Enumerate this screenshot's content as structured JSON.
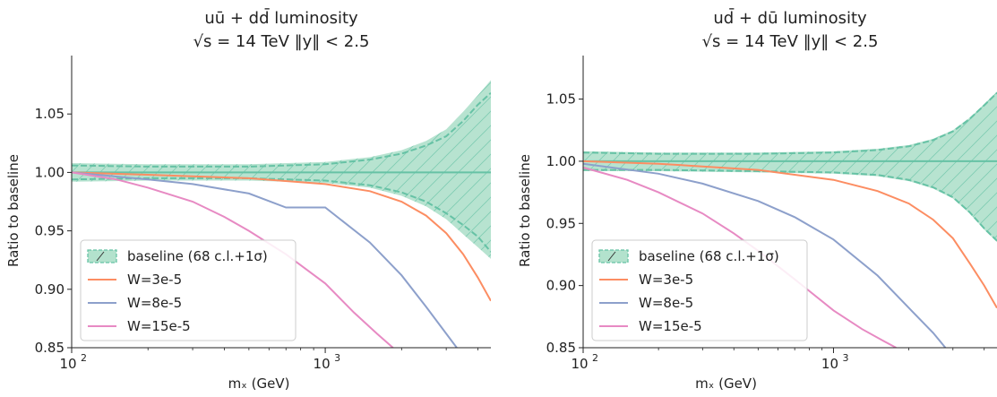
{
  "colors": {
    "baseline": "#66c2a5",
    "baseline_fill": "#b3e2cd",
    "w3": "#fc8d62",
    "w8": "#8da0cb",
    "w15": "#e78ac3"
  },
  "chart_data": [
    {
      "type": "line",
      "title": "uū + dd̄ luminosity",
      "subtitle": "√s = 14 TeV    ‖y‖ < 2.5",
      "xlabel": "m_X (GeV)",
      "ylabel": "Ratio to baseline",
      "xscale": "log",
      "xlim": [
        100,
        4500
      ],
      "ylim": [
        0.85,
        1.1
      ],
      "yticks": [
        0.85,
        0.9,
        0.95,
        1.0,
        1.05
      ],
      "ytick_labels": [
        "0.85",
        "0.90",
        "0.95",
        "1.00",
        "1.05"
      ],
      "xticks": [
        100,
        1000
      ],
      "xtick_labels": [
        "10",
        "10"
      ],
      "xtick_exponents": [
        "2",
        "3"
      ],
      "legend": {
        "position": "lower-left",
        "entries": [
          "baseline (68 c.l.+1σ)",
          "W=3e-5",
          "W=8e-5",
          "W=15e-5"
        ]
      },
      "band": {
        "name": "baseline (68 c.l.+1σ)",
        "x": [
          100,
          200,
          500,
          1000,
          1500,
          2000,
          2500,
          3000,
          3500,
          4000,
          4500
        ],
        "upper": [
          1.008,
          1.007,
          1.007,
          1.009,
          1.013,
          1.019,
          1.027,
          1.037,
          1.052,
          1.066,
          1.079
        ],
        "lower": [
          0.992,
          0.993,
          0.993,
          0.991,
          0.987,
          0.98,
          0.971,
          0.96,
          0.947,
          0.936,
          0.926
        ],
        "dashed_upper": [
          1.006,
          1.005,
          1.005,
          1.007,
          1.011,
          1.016,
          1.023,
          1.031,
          1.044,
          1.058,
          1.068
        ],
        "dashed_lower": [
          0.994,
          0.995,
          0.995,
          0.993,
          0.989,
          0.983,
          0.975,
          0.965,
          0.955,
          0.945,
          0.932
        ]
      },
      "series": [
        {
          "name": "W=3e-5",
          "color_key": "w3",
          "x": [
            100,
            200,
            500,
            1000,
            1500,
            2000,
            2500,
            3000,
            3500,
            4000,
            4500
          ],
          "values": [
            1.0,
            0.998,
            0.995,
            0.99,
            0.984,
            0.975,
            0.963,
            0.948,
            0.93,
            0.91,
            0.89
          ]
        },
        {
          "name": "W=8e-5",
          "color_key": "w8",
          "x": [
            100,
            200,
            300,
            500,
            700,
            1000,
            1500,
            2000,
            2500,
            3000,
            3300
          ],
          "values": [
            1.0,
            0.994,
            0.99,
            0.982,
            0.97,
            0.97,
            0.94,
            0.912,
            0.885,
            0.862,
            0.85
          ]
        },
        {
          "name": "W=15e-5",
          "color_key": "w15",
          "x": [
            100,
            150,
            200,
            300,
            400,
            500,
            700,
            1000,
            1300,
            1600,
            1850
          ],
          "values": [
            1.0,
            0.994,
            0.987,
            0.975,
            0.962,
            0.95,
            0.93,
            0.905,
            0.88,
            0.862,
            0.85
          ]
        }
      ]
    },
    {
      "type": "line",
      "title": "ud̄ + dū luminosity",
      "subtitle": "√s = 14 TeV    ‖y‖ < 2.5",
      "xlabel": "m_X (GeV)",
      "ylabel": "Ratio to baseline",
      "xscale": "log",
      "xlim": [
        100,
        4500
      ],
      "ylim": [
        0.85,
        1.085
      ],
      "yticks": [
        0.85,
        0.9,
        0.95,
        1.0,
        1.05
      ],
      "ytick_labels": [
        "0.85",
        "0.90",
        "0.95",
        "1.00",
        "1.05"
      ],
      "xticks": [
        100,
        1000
      ],
      "xtick_labels": [
        "10",
        "10"
      ],
      "xtick_exponents": [
        "2",
        "3"
      ],
      "legend": {
        "position": "lower-left",
        "entries": [
          "baseline (68 c.l.+1σ)",
          "W=3e-5",
          "W=8e-5",
          "W=15e-5"
        ]
      },
      "band": {
        "name": "baseline (68 c.l.+1σ)",
        "x": [
          100,
          200,
          500,
          1000,
          1500,
          2000,
          2500,
          3000,
          3500,
          4000,
          4500
        ],
        "upper": [
          1.008,
          1.007,
          1.007,
          1.008,
          1.01,
          1.013,
          1.018,
          1.025,
          1.035,
          1.046,
          1.056
        ],
        "lower": [
          0.992,
          0.992,
          0.991,
          0.99,
          0.988,
          0.984,
          0.978,
          0.97,
          0.958,
          0.945,
          0.935
        ],
        "dashed_upper": [
          1.007,
          1.006,
          1.006,
          1.007,
          1.009,
          1.012,
          1.017,
          1.024,
          1.034,
          1.045,
          1.055
        ],
        "dashed_lower": [
          0.993,
          0.993,
          0.992,
          0.991,
          0.989,
          0.985,
          0.979,
          0.971,
          0.959,
          0.946,
          0.936
        ]
      },
      "series": [
        {
          "name": "W=3e-5",
          "color_key": "w3",
          "x": [
            100,
            200,
            500,
            1000,
            1500,
            2000,
            2500,
            3000,
            3500,
            4000,
            4500
          ],
          "values": [
            1.0,
            0.998,
            0.993,
            0.985,
            0.976,
            0.966,
            0.953,
            0.938,
            0.918,
            0.9,
            0.882
          ]
        },
        {
          "name": "W=8e-5",
          "color_key": "w8",
          "x": [
            100,
            200,
            300,
            500,
            700,
            1000,
            1500,
            2000,
            2500,
            2800
          ],
          "values": [
            0.998,
            0.99,
            0.982,
            0.968,
            0.955,
            0.937,
            0.908,
            0.882,
            0.862,
            0.85
          ]
        },
        {
          "name": "W=15e-5",
          "color_key": "w15",
          "x": [
            100,
            150,
            200,
            300,
            400,
            500,
            700,
            1000,
            1300,
            1600,
            1780
          ],
          "values": [
            0.995,
            0.985,
            0.975,
            0.958,
            0.942,
            0.928,
            0.905,
            0.88,
            0.865,
            0.855,
            0.85
          ]
        }
      ]
    }
  ]
}
